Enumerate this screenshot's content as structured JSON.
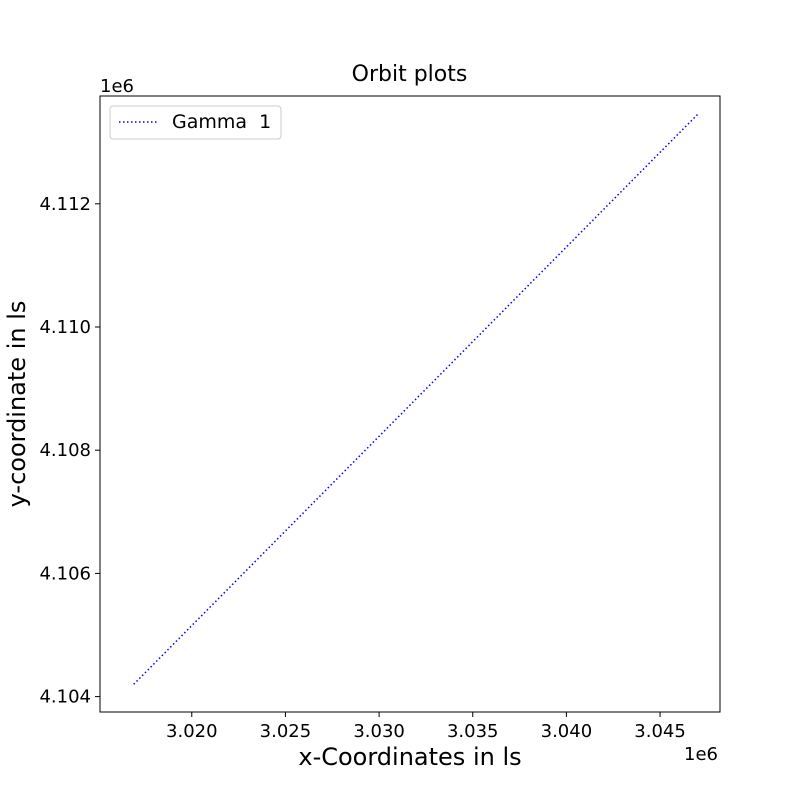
{
  "chart_data": {
    "type": "line",
    "title": "Orbit plots",
    "xlabel": "x-Coordinates in ls",
    "ylabel": "y-coordinate in ls",
    "x_offset_text": "1e6",
    "y_offset_text": "1e6",
    "xlim": [
      3.0151,
      3.0482
    ],
    "ylim": [
      4.10375,
      4.11375
    ],
    "x_ticks": [
      3.02,
      3.025,
      3.03,
      3.035,
      3.04,
      3.045
    ],
    "x_tick_labels": [
      "3.020",
      "3.025",
      "3.030",
      "3.035",
      "3.040",
      "3.045"
    ],
    "y_ticks": [
      4.104,
      4.106,
      4.108,
      4.11,
      4.112
    ],
    "y_tick_labels": [
      "4.104",
      "4.106",
      "4.108",
      "4.110",
      "4.112"
    ],
    "grid": false,
    "legend_position": "top-left",
    "series": [
      {
        "name": "Gamma  1",
        "color": "#0000ff",
        "linestyle": "dotted",
        "x": [
          3.0169,
          3.047
        ],
        "y": [
          4.1042,
          4.11345
        ]
      }
    ]
  }
}
